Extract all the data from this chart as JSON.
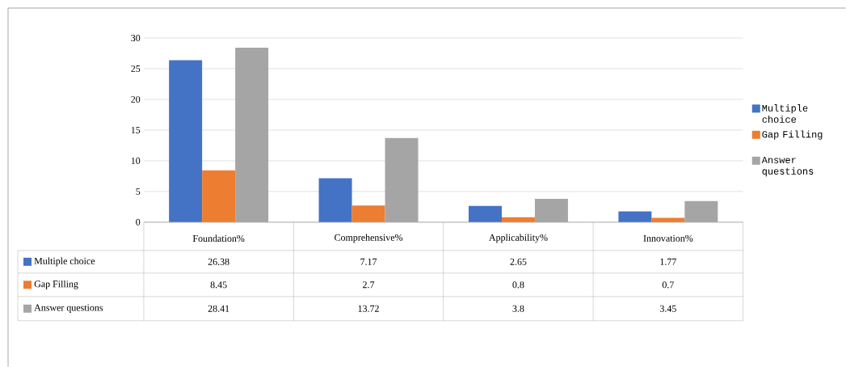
{
  "chart_data": {
    "type": "bar",
    "categories": [
      "Foundation%",
      "Comprehensive%",
      "Applicability%",
      "Innovation%"
    ],
    "series": [
      {
        "name": "Multiple choice",
        "color": "#4472c4",
        "values": [
          26.38,
          7.17,
          2.65,
          1.77
        ]
      },
      {
        "name": "Gap Filling",
        "color": "#ed7d31",
        "values": [
          8.45,
          2.7,
          0.8,
          0.7
        ]
      },
      {
        "name": "Answer questions",
        "color": "#a5a5a5",
        "values": [
          28.41,
          13.72,
          3.8,
          3.45
        ]
      }
    ],
    "ylim": [
      0,
      30
    ],
    "yticks": [
      0,
      5,
      10,
      15,
      20,
      25,
      30
    ],
    "grid": "y",
    "legend": "right",
    "data_labels": true
  }
}
